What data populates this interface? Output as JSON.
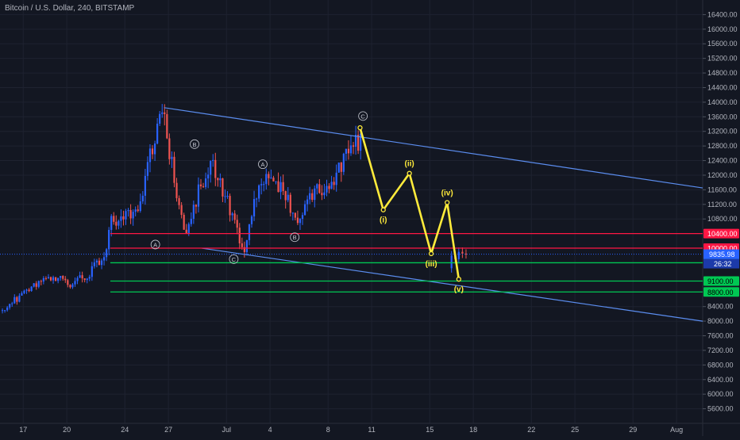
{
  "colors": {
    "background": "#131722",
    "grid": "#1e2230",
    "axis_text": "#b2b5be",
    "candle_up": "#2962ff",
    "candle_down": "#ef5350",
    "trendline": "#5b8def",
    "support": "#00c853",
    "resistance": "#ff1744",
    "wave": "#ffeb3b",
    "last_price": "#2962ff"
  },
  "chart_data": {
    "type": "candlestick",
    "title": "Bitcoin / U.S. Dollar, 240, BITSTAMP",
    "ylim": [
      5200,
      16800
    ],
    "y_ticks": [
      "16400.00",
      "16000.00",
      "15600.00",
      "15200.00",
      "14800.00",
      "14400.00",
      "14000.00",
      "13600.00",
      "13200.00",
      "12800.00",
      "12400.00",
      "12000.00",
      "11600.00",
      "11200.00",
      "10800.00",
      "8400.00",
      "8000.00",
      "7600.00",
      "7200.00",
      "6800.00",
      "6400.00",
      "6000.00",
      "5600.00"
    ],
    "x_tick_labels": [
      "17",
      "20",
      "24",
      "27",
      "Jul",
      "4",
      "8",
      "11",
      "15",
      "18",
      "22",
      "25",
      "29",
      "Aug"
    ],
    "x_tick_days": [
      17,
      20,
      24,
      27,
      31,
      34,
      38,
      41,
      45,
      48,
      52,
      55,
      59,
      62
    ],
    "x_range_days": [
      15.4,
      63.8
    ],
    "price_path": [
      {
        "day": 15.4,
        "price": 8300
      },
      {
        "day": 16.5,
        "price": 8600
      },
      {
        "day": 17.5,
        "price": 8900
      },
      {
        "day": 18.5,
        "price": 9250
      },
      {
        "day": 19.5,
        "price": 9150
      },
      {
        "day": 20.3,
        "price": 9000
      },
      {
        "day": 21.5,
        "price": 9300
      },
      {
        "day": 22.6,
        "price": 9800
      },
      {
        "day": 23,
        "price": 10700
      },
      {
        "day": 24,
        "price": 10800
      },
      {
        "day": 25,
        "price": 11200
      },
      {
        "day": 25.8,
        "price": 12600
      },
      {
        "day": 26.7,
        "price": 13800
      },
      {
        "day": 27.6,
        "price": 11200
      },
      {
        "day": 28.2,
        "price": 10300
      },
      {
        "day": 29,
        "price": 11500
      },
      {
        "day": 30,
        "price": 12300
      },
      {
        "day": 31,
        "price": 11300
      },
      {
        "day": 31.7,
        "price": 10500
      },
      {
        "day": 32.3,
        "price": 9900
      },
      {
        "day": 33,
        "price": 11500
      },
      {
        "day": 34,
        "price": 12100
      },
      {
        "day": 34.8,
        "price": 11600
      },
      {
        "day": 35.8,
        "price": 10800
      },
      {
        "day": 37,
        "price": 11500
      },
      {
        "day": 38,
        "price": 11700
      },
      {
        "day": 39,
        "price": 12300
      },
      {
        "day": 40,
        "price": 13000
      },
      {
        "day": 40.3,
        "price": 12900
      }
    ],
    "current_candles": [
      {
        "day": 46.5,
        "open": 9450,
        "close": 9800
      },
      {
        "day": 46.75,
        "open": 9800,
        "close": 9700
      },
      {
        "day": 47.0,
        "open": 9700,
        "close": 9900
      },
      {
        "day": 47.25,
        "open": 9900,
        "close": 9850
      },
      {
        "day": 47.5,
        "open": 9850,
        "close": 9835
      }
    ],
    "elliott_wave": [
      {
        "label": "",
        "day": 40.2,
        "price": 13300
      },
      {
        "label": "(i)",
        "day": 41.8,
        "price": 11050
      },
      {
        "label": "(ii)",
        "day": 43.6,
        "price": 12050
      },
      {
        "label": "(iii)",
        "day": 45.1,
        "price": 9850
      },
      {
        "label": "(iv)",
        "day": 46.2,
        "price": 11250
      },
      {
        "label": "(v)",
        "day": 47.0,
        "price": 9150
      }
    ],
    "corrective_labels": [
      {
        "label": "A",
        "day": 26.1,
        "price": 10100
      },
      {
        "label": "B",
        "day": 28.8,
        "price": 12850
      },
      {
        "label": "C",
        "day": 31.5,
        "price": 9700
      },
      {
        "label": "A",
        "day": 33.5,
        "price": 12300
      },
      {
        "label": "B",
        "day": 35.7,
        "price": 10300
      },
      {
        "label": "C",
        "day": 40.4,
        "price": 13620
      }
    ],
    "channel": {
      "upper": [
        {
          "day": 26.7,
          "price": 13850
        },
        {
          "day": 63.8,
          "price": 11650
        }
      ],
      "lower": [
        {
          "day": 29.3,
          "price": 10000
        },
        {
          "day": 63.8,
          "price": 8000
        }
      ]
    },
    "horizontal_levels": [
      {
        "price": 10400,
        "label": "10400.00",
        "role": "resistance"
      },
      {
        "price": 10000,
        "label": "10000.00",
        "role": "resistance"
      },
      {
        "price": 9600,
        "label": "9600.00",
        "role": "support"
      },
      {
        "price": 9100,
        "label": "9100.00",
        "role": "support"
      },
      {
        "price": 8800,
        "label": "8800.00",
        "role": "support"
      }
    ],
    "last_price": {
      "price": 9835.98,
      "label": "9835.98",
      "countdown": "26:32"
    }
  }
}
